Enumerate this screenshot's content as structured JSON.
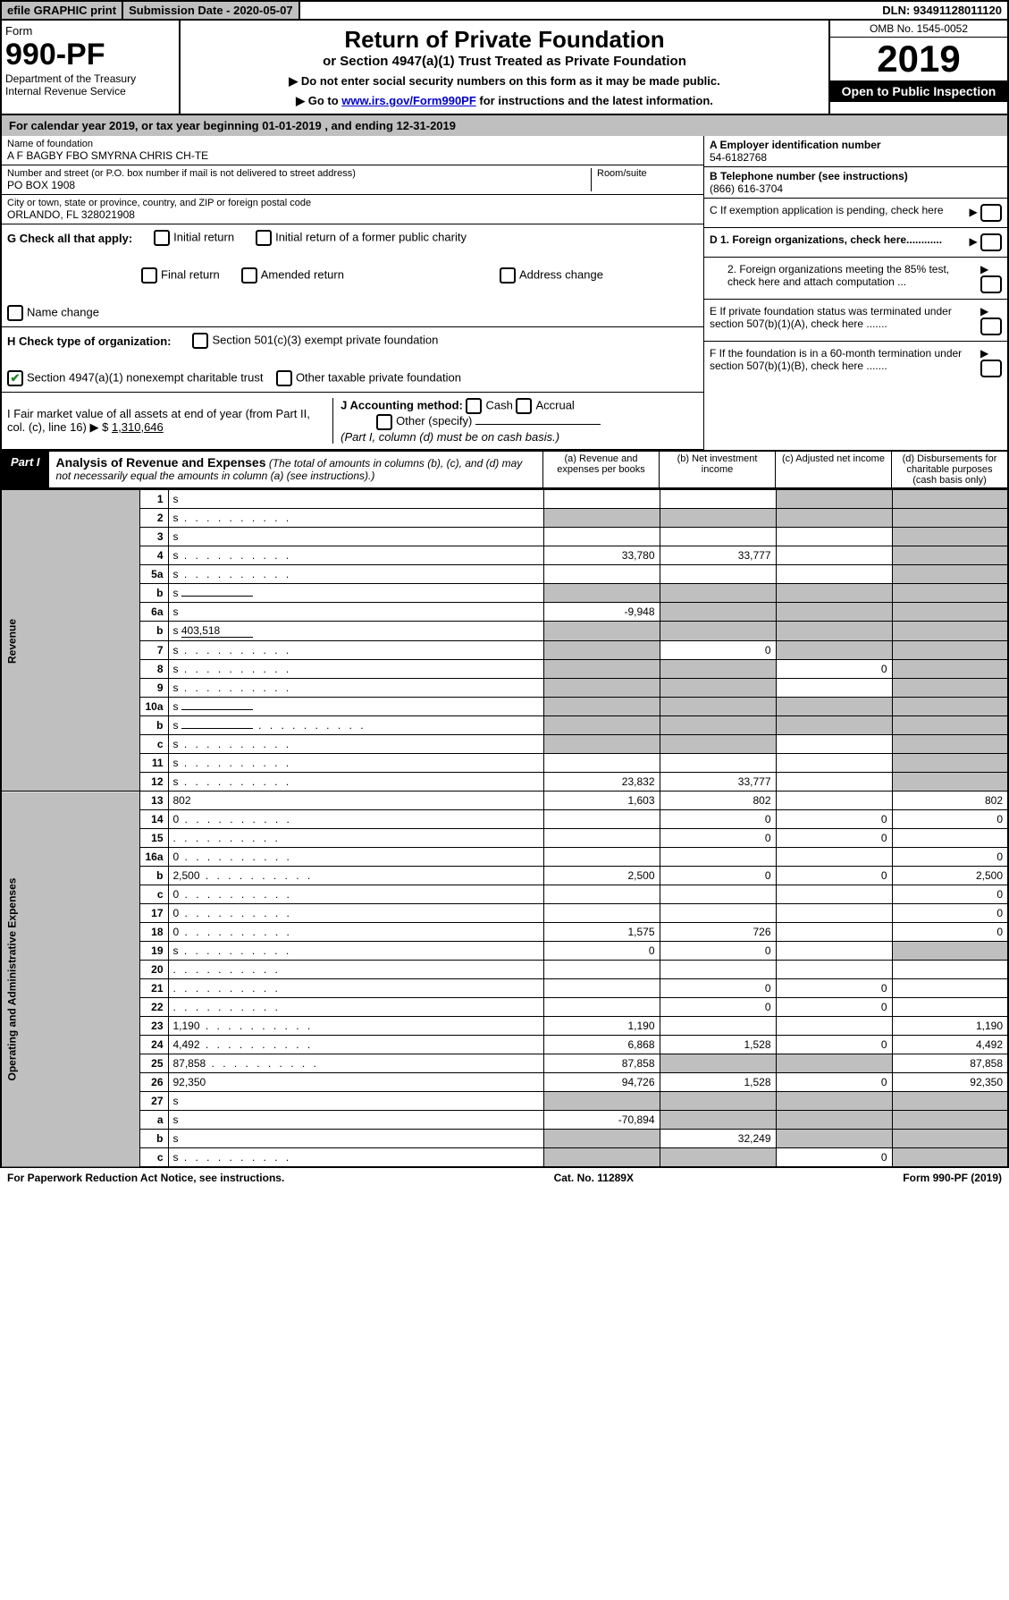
{
  "topbar": {
    "efile": "efile GRAPHIC print",
    "submission": "Submission Date - 2020-05-07",
    "dln": "DLN: 93491128011120"
  },
  "header": {
    "form_word": "Form",
    "form_no": "990-PF",
    "dept": "Department of the Treasury",
    "irs": "Internal Revenue Service",
    "title": "Return of Private Foundation",
    "subtitle": "or Section 4947(a)(1) Trust Treated as Private Foundation",
    "warn1": "▶ Do not enter social security numbers on this form as it may be made public.",
    "warn2_pre": "▶ Go to ",
    "warn2_link": "www.irs.gov/Form990PF",
    "warn2_post": " for instructions and the latest information.",
    "omb": "OMB No. 1545-0052",
    "year": "2019",
    "open": "Open to Public Inspection"
  },
  "cal": "For calendar year 2019, or tax year beginning 01-01-2019                            , and ending 12-31-2019",
  "info": {
    "name_lbl": "Name of foundation",
    "name": "A F BAGBY FBO SMYRNA CHRIS CH-TE",
    "addr_lbl": "Number and street (or P.O. box number if mail is not delivered to street address)",
    "addr": "PO BOX 1908",
    "room_lbl": "Room/suite",
    "city_lbl": "City or town, state or province, country, and ZIP or foreign postal code",
    "city": "ORLANDO, FL  328021908",
    "A_lbl": "A Employer identification number",
    "A": "54-6182768",
    "B_lbl": "B Telephone number (see instructions)",
    "B": "(866) 616-3704",
    "C": "C  If exemption application is pending, check here",
    "D1": "D 1. Foreign organizations, check here............",
    "D2": "2. Foreign organizations meeting the 85% test, check here and attach computation ...",
    "E": "E  If private foundation status was terminated under section 507(b)(1)(A), check here .......",
    "F": "F  If the foundation is in a 60-month termination under section 507(b)(1)(B), check here .......",
    "G_lbl": "G Check all that apply:",
    "G_opts": [
      "Initial return",
      "Initial return of a former public charity",
      "Final return",
      "Amended return",
      "Address change",
      "Name change"
    ],
    "H_lbl": "H Check type of organization:",
    "H1": "Section 501(c)(3) exempt private foundation",
    "H2": "Section 4947(a)(1) nonexempt charitable trust",
    "H3": "Other taxable private foundation",
    "I_lbl": "I Fair market value of all assets at end of year (from Part II, col. (c), line 16) ▶ $",
    "I_val": "1,310,646",
    "J_lbl": "J Accounting method:",
    "J_cash": "Cash",
    "J_acc": "Accrual",
    "J_other": "Other (specify)",
    "J_note": "(Part I, column (d) must be on cash basis.)"
  },
  "part1": {
    "tab": "Part I",
    "title": "Analysis of Revenue and Expenses",
    "note": "(The total of amounts in columns (b), (c), and (d) may not necessarily equal the amounts in column (a) (see instructions).)",
    "cols": {
      "a": "(a)   Revenue and expenses per books",
      "b": "(b)   Net investment income",
      "c": "(c)   Adjusted net income",
      "d": "(d)   Disbursements for charitable purposes (cash basis only)"
    }
  },
  "sections": {
    "rev": "Revenue",
    "ope": "Operating and Administrative Expenses"
  },
  "rows": [
    {
      "n": "1",
      "d": "s",
      "a": "",
      "b": "",
      "c": "s"
    },
    {
      "n": "2",
      "d": "s",
      "a": "s",
      "b": "s",
      "c": "s",
      "dots": true
    },
    {
      "n": "3",
      "d": "s",
      "a": "",
      "b": "",
      "c": ""
    },
    {
      "n": "4",
      "d": "s",
      "a": "33,780",
      "b": "33,777",
      "c": "",
      "dots": true
    },
    {
      "n": "5a",
      "d": "s",
      "a": "",
      "b": "",
      "c": "",
      "dots": true
    },
    {
      "n": "b",
      "d": "s",
      "a": "s",
      "b": "s",
      "c": "s",
      "blank": true
    },
    {
      "n": "6a",
      "d": "s",
      "a": "-9,948",
      "b": "s",
      "c": "s"
    },
    {
      "n": "b",
      "d": "s",
      "a": "s",
      "b": "s",
      "c": "s",
      "blank": true,
      "bval": "403,518"
    },
    {
      "n": "7",
      "d": "s",
      "a": "s",
      "b": "0",
      "c": "s",
      "dots": true
    },
    {
      "n": "8",
      "d": "s",
      "a": "s",
      "b": "s",
      "c": "0",
      "dots": true
    },
    {
      "n": "9",
      "d": "s",
      "a": "s",
      "b": "s",
      "c": "",
      "dots": true
    },
    {
      "n": "10a",
      "d": "s",
      "a": "s",
      "b": "s",
      "c": "s",
      "blank": true
    },
    {
      "n": "b",
      "d": "s",
      "a": "s",
      "b": "s",
      "c": "s",
      "blank": true,
      "dots": true
    },
    {
      "n": "c",
      "d": "s",
      "a": "s",
      "b": "s",
      "c": "",
      "dots": true
    },
    {
      "n": "11",
      "d": "s",
      "a": "",
      "b": "",
      "c": "",
      "dots": true
    },
    {
      "n": "12",
      "d": "s",
      "a": "23,832",
      "b": "33,777",
      "c": "",
      "dots": true
    },
    {
      "n": "13",
      "d": "802",
      "a": "1,603",
      "b": "802",
      "c": ""
    },
    {
      "n": "14",
      "d": "0",
      "a": "",
      "b": "0",
      "c": "0",
      "dots": true
    },
    {
      "n": "15",
      "d": "",
      "a": "",
      "b": "0",
      "c": "0",
      "dots": true
    },
    {
      "n": "16a",
      "d": "0",
      "a": "",
      "b": "",
      "c": "",
      "dots": true
    },
    {
      "n": "b",
      "d": "2,500",
      "a": "2,500",
      "b": "0",
      "c": "0",
      "dots": true
    },
    {
      "n": "c",
      "d": "0",
      "a": "",
      "b": "",
      "c": "",
      "dots": true
    },
    {
      "n": "17",
      "d": "0",
      "a": "",
      "b": "",
      "c": "",
      "dots": true
    },
    {
      "n": "18",
      "d": "0",
      "a": "1,575",
      "b": "726",
      "c": "",
      "dots": true
    },
    {
      "n": "19",
      "d": "s",
      "a": "0",
      "b": "0",
      "c": "",
      "dots": true
    },
    {
      "n": "20",
      "d": "",
      "a": "",
      "b": "",
      "c": "",
      "dots": true
    },
    {
      "n": "21",
      "d": "",
      "a": "",
      "b": "0",
      "c": "0",
      "dots": true
    },
    {
      "n": "22",
      "d": "",
      "a": "",
      "b": "0",
      "c": "0",
      "dots": true
    },
    {
      "n": "23",
      "d": "1,190",
      "a": "1,190",
      "b": "",
      "c": "",
      "dots": true
    },
    {
      "n": "24",
      "d": "4,492",
      "a": "6,868",
      "b": "1,528",
      "c": "0",
      "dots": true
    },
    {
      "n": "25",
      "d": "87,858",
      "a": "87,858",
      "b": "s",
      "c": "s",
      "dots": true
    },
    {
      "n": "26",
      "d": "92,350",
      "a": "94,726",
      "b": "1,528",
      "c": "0"
    },
    {
      "n": "27",
      "d": "s",
      "a": "s",
      "b": "s",
      "c": "s"
    },
    {
      "n": "a",
      "d": "s",
      "a": "-70,894",
      "b": "s",
      "c": "s"
    },
    {
      "n": "b",
      "d": "s",
      "a": "s",
      "b": "32,249",
      "c": "s"
    },
    {
      "n": "c",
      "d": "s",
      "a": "s",
      "b": "s",
      "c": "0",
      "dots": true
    }
  ],
  "footer": {
    "left": "For Paperwork Reduction Act Notice, see instructions.",
    "mid": "Cat. No. 11289X",
    "right": "Form 990-PF (2019)"
  }
}
